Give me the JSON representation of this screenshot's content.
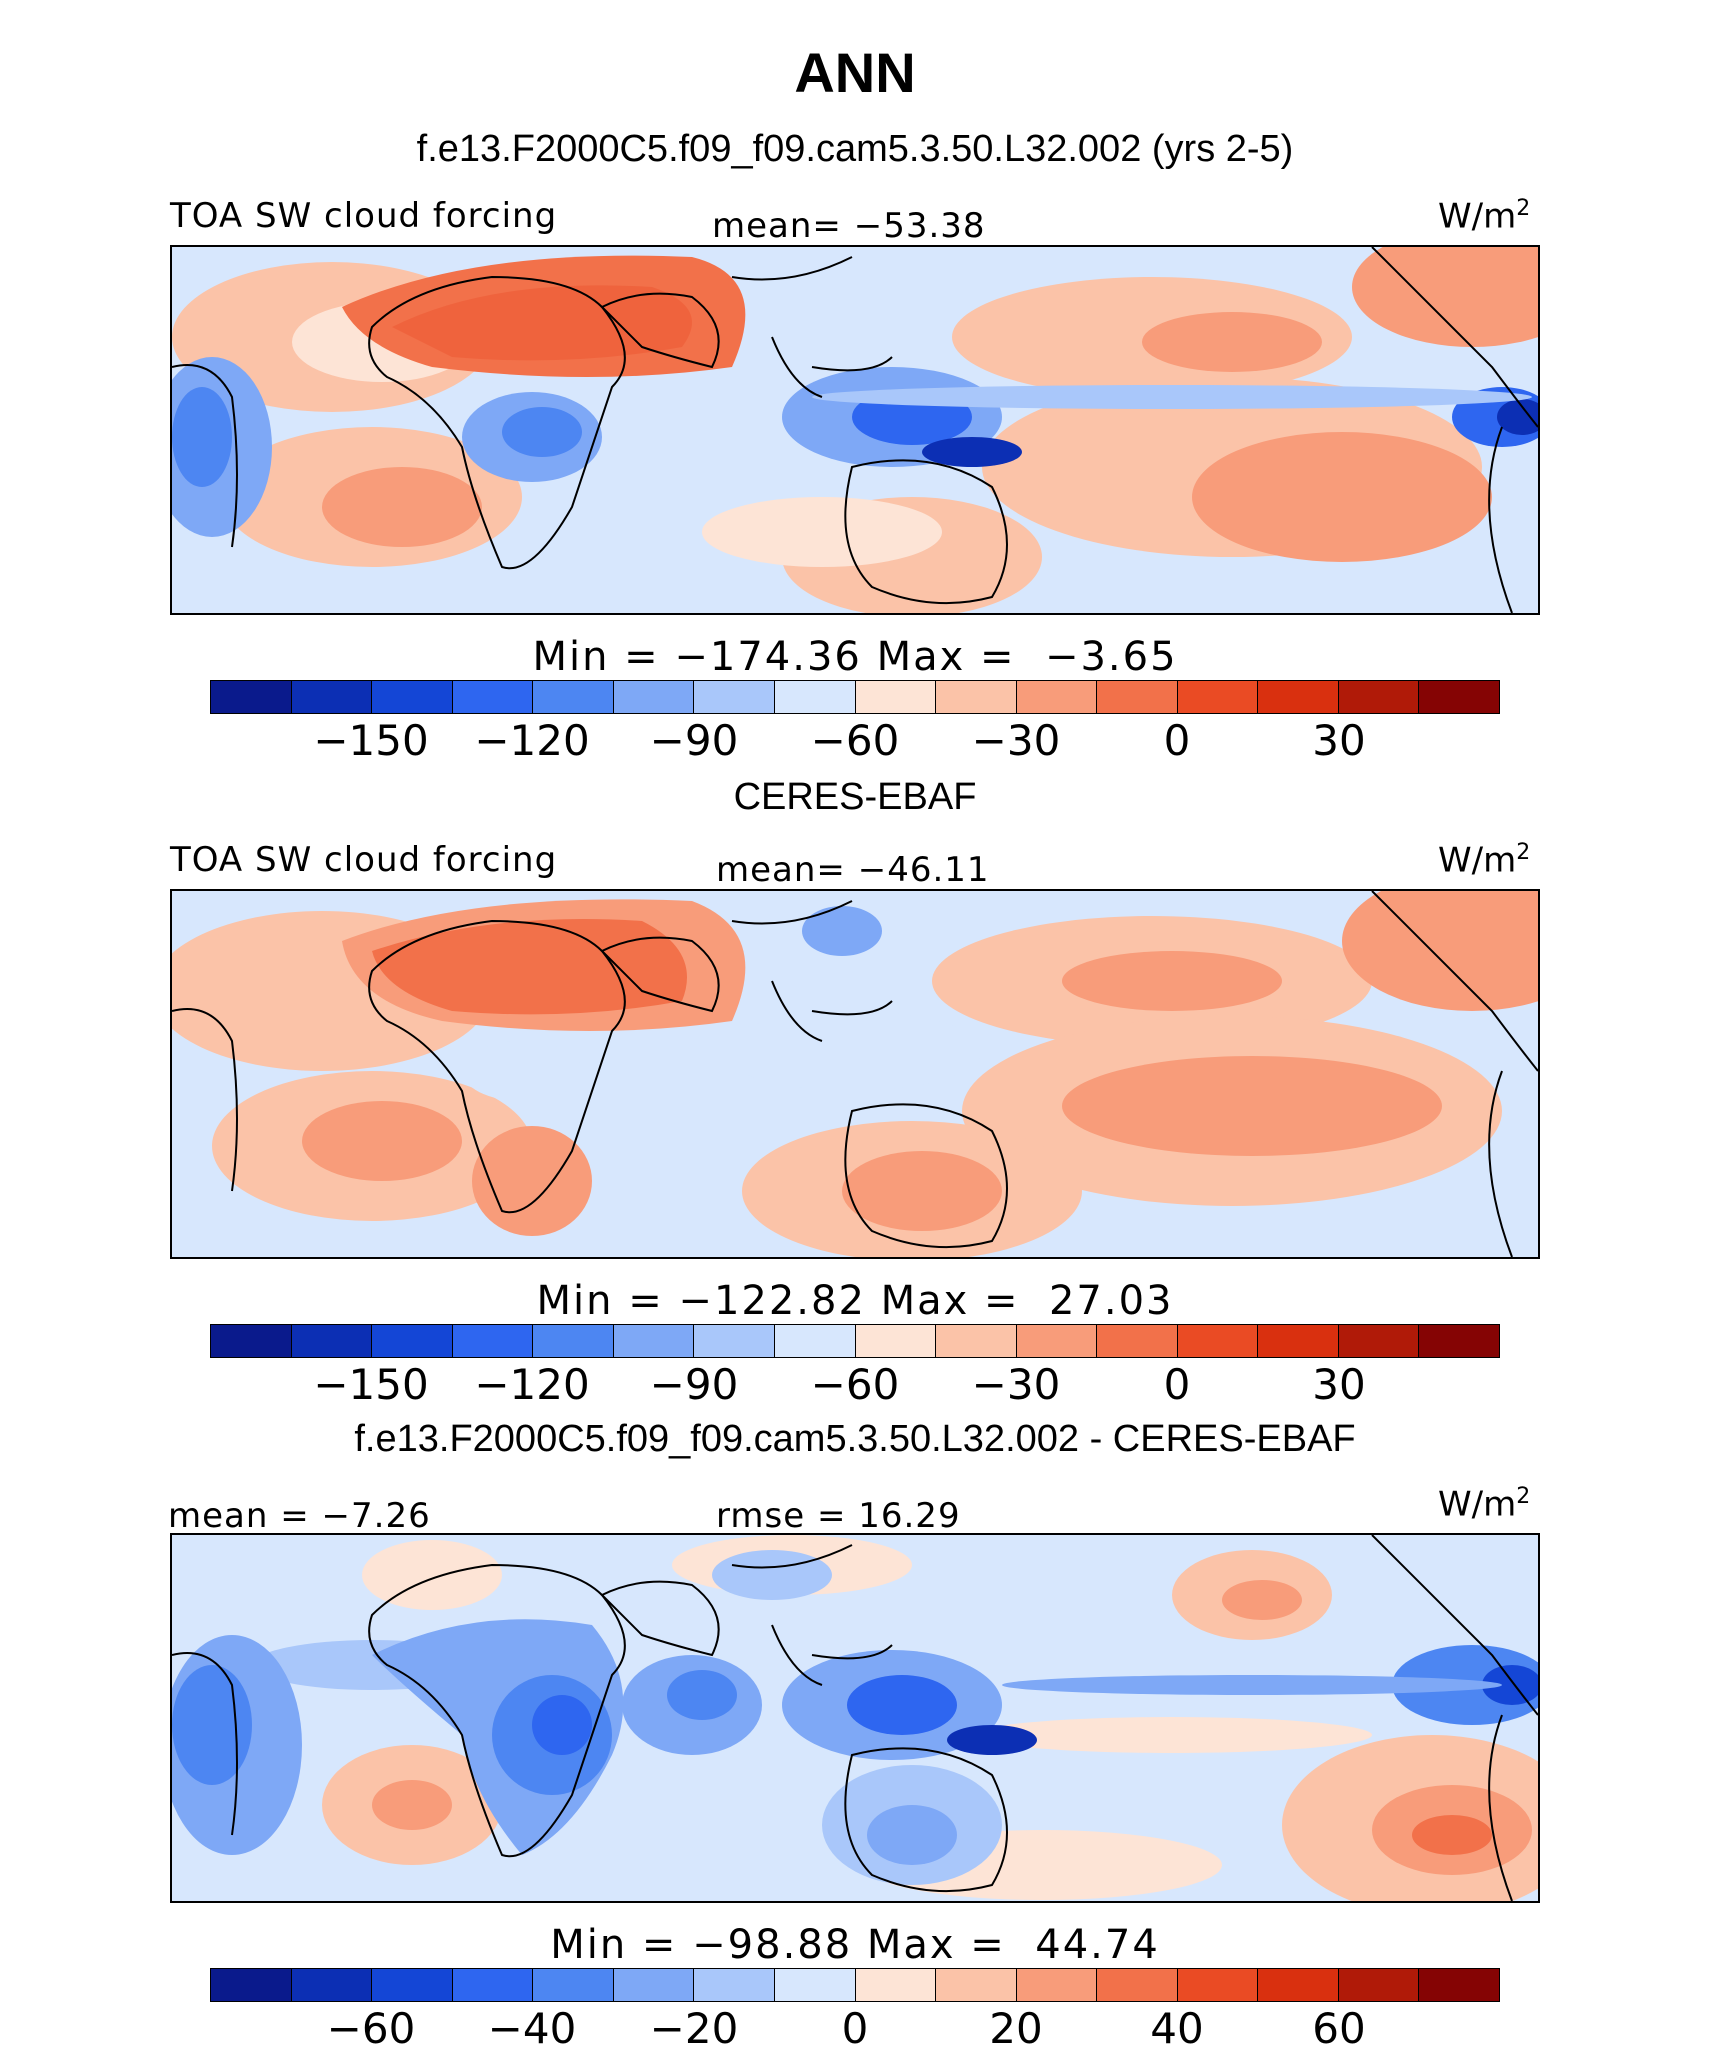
{
  "title": "ANN",
  "colors": [
    "#0a1a8c",
    "#0c2fb4",
    "#1446d6",
    "#2e66f0",
    "#4d86f2",
    "#7ea8f6",
    "#a9c7fa",
    "#d7e7fd",
    "#fde4d6",
    "#fbc3a8",
    "#f89c7a",
    "#f2714a",
    "#ea4b24",
    "#d9300f",
    "#b01a08",
    "#850404"
  ],
  "panels": [
    {
      "header": "f.e13.F2000C5.f09_f09.cam5.3.50.L32.002 (yrs 2-5)",
      "label_left": "TOA SW cloud forcing",
      "label_center": "mean= −53.38",
      "unit": "W/m",
      "unit_sup": "2",
      "minmax": "Min = −174.36 Max =  −3.65",
      "ticks": [
        "−150",
        "−120",
        "−90",
        "−60",
        "−30",
        "0",
        "30"
      ]
    },
    {
      "header": "CERES-EBAF",
      "label_left": "TOA SW cloud forcing",
      "label_center": "mean= −46.11",
      "unit": "W/m",
      "unit_sup": "2",
      "minmax": "Min = −122.82 Max =  27.03",
      "ticks": [
        "−150",
        "−120",
        "−90",
        "−60",
        "−30",
        "0",
        "30"
      ]
    },
    {
      "header": "f.e13.F2000C5.f09_f09.cam5.3.50.L32.002 - CERES-EBAF",
      "label_left": "mean =  −7.26",
      "label_center": "rmse =  16.29",
      "unit": "W/m",
      "unit_sup": "2",
      "minmax": "Min = −98.88 Max =  44.74",
      "ticks": [
        "−60",
        "−40",
        "−20",
        "0",
        "20",
        "40",
        "60"
      ]
    }
  ]
}
